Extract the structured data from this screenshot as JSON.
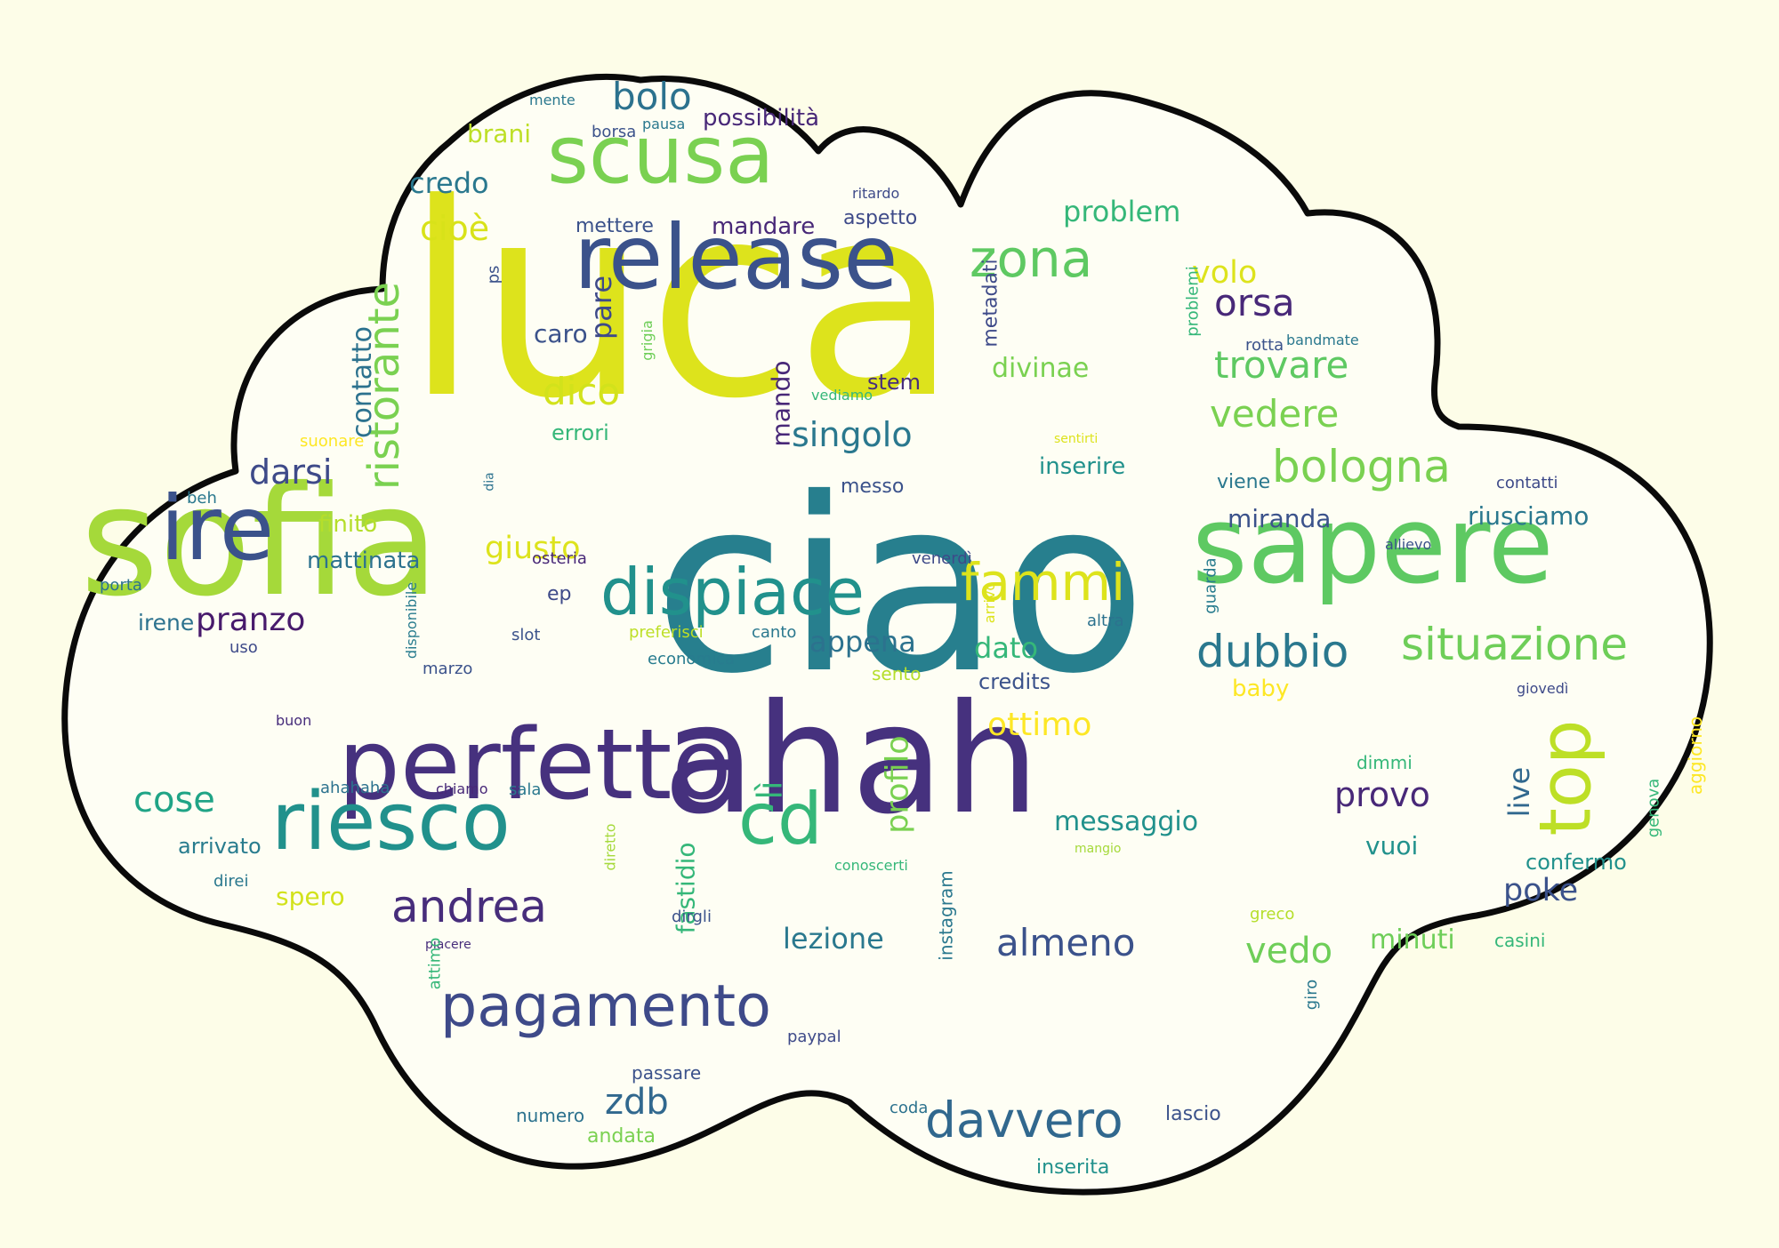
{
  "palette": {
    "background": "#fdfde8",
    "cloud_fill": "#fefef4",
    "cloud_outline": "#0a0a0a"
  },
  "words": [
    {
      "text": "luca",
      "color": "#dde31c"
    },
    {
      "text": "ciao",
      "color": "#277f8e"
    },
    {
      "text": "sofia",
      "color": "#a5d93a"
    },
    {
      "text": "ahah",
      "color": "#46317e"
    },
    {
      "text": "sapere",
      "color": "#5ec962"
    },
    {
      "text": "perfetto",
      "color": "#46317e"
    },
    {
      "text": "release",
      "color": "#3b528b"
    },
    {
      "text": "scusa",
      "color": "#7ad151"
    },
    {
      "text": "ire",
      "color": "#3b528b"
    },
    {
      "text": "riesco",
      "color": "#21918c"
    },
    {
      "text": "dispiace",
      "color": "#21918c"
    },
    {
      "text": "pagamento",
      "color": "#3e4a89"
    },
    {
      "text": "top",
      "color": "#bddf26"
    },
    {
      "text": "davvero",
      "color": "#31688e"
    },
    {
      "text": "situazione",
      "color": "#6ece58"
    },
    {
      "text": "bologna",
      "color": "#7ad151"
    },
    {
      "text": "fammi",
      "color": "#dde31c"
    },
    {
      "text": "dubbio",
      "color": "#2a788e"
    },
    {
      "text": "zona",
      "color": "#5ec962"
    },
    {
      "text": "cd",
      "color": "#35b779"
    },
    {
      "text": "ristorante",
      "color": "#7ad151"
    },
    {
      "text": "andrea",
      "color": "#472d7b"
    },
    {
      "text": "almeno",
      "color": "#3b528b"
    },
    {
      "text": "trovare",
      "color": "#5ec962"
    },
    {
      "text": "vedere",
      "color": "#7ad151"
    },
    {
      "text": "orsa",
      "color": "#482878"
    },
    {
      "text": "singolo",
      "color": "#2a788e"
    },
    {
      "text": "dico",
      "color": "#d2e21b"
    },
    {
      "text": "bolo",
      "color": "#2c728e"
    },
    {
      "text": "provo",
      "color": "#482878"
    },
    {
      "text": "pranzo",
      "color": "#481a6c"
    },
    {
      "text": "darsi",
      "color": "#3e4a89"
    },
    {
      "text": "giusto",
      "color": "#dde31c"
    },
    {
      "text": "cose",
      "color": "#20a486"
    },
    {
      "text": "ottimo",
      "color": "#fde725"
    },
    {
      "text": "profilo",
      "color": "#7ad151"
    },
    {
      "text": "appena",
      "color": "#2c728e"
    },
    {
      "text": "vedo",
      "color": "#6ece58"
    },
    {
      "text": "zdb",
      "color": "#31688e"
    },
    {
      "text": "credo",
      "color": "#2a788e"
    },
    {
      "text": "cioè",
      "color": "#d8e219"
    },
    {
      "text": "contatto",
      "color": "#2c728e"
    },
    {
      "text": "live",
      "color": "#31688e"
    },
    {
      "text": "poke",
      "color": "#3b528b"
    },
    {
      "text": "volo",
      "color": "#dde31c"
    },
    {
      "text": "lezione",
      "color": "#2a788e"
    },
    {
      "text": "problem",
      "color": "#35b779"
    },
    {
      "text": "messaggio",
      "color": "#21918c"
    },
    {
      "text": "divinae",
      "color": "#7ad151"
    },
    {
      "text": "dato",
      "color": "#35b779"
    },
    {
      "text": "miranda",
      "color": "#3b528b"
    },
    {
      "text": "riusciamo",
      "color": "#2a788e"
    },
    {
      "text": "minuti",
      "color": "#6ece58"
    },
    {
      "text": "mandare",
      "color": "#482878"
    },
    {
      "text": "mattinata",
      "color": "#2c728e"
    },
    {
      "text": "lì",
      "color": "#35b779"
    },
    {
      "text": "possibilità",
      "color": "#482878"
    },
    {
      "text": "brani",
      "color": "#bddf26"
    },
    {
      "text": "pare",
      "color": "#3e4a89"
    },
    {
      "text": "caro",
      "color": "#3b528b"
    },
    {
      "text": "mando",
      "color": "#482878"
    },
    {
      "text": "inserire",
      "color": "#21918c"
    },
    {
      "text": "vuoi",
      "color": "#21918c"
    },
    {
      "text": "finito",
      "color": "#b5de2b"
    },
    {
      "text": "spero",
      "color": "#d2e21b"
    },
    {
      "text": "irene",
      "color": "#2c728e"
    },
    {
      "text": "credits",
      "color": "#3b528b"
    },
    {
      "text": "fastidio",
      "color": "#35b779"
    },
    {
      "text": "baby",
      "color": "#fde725"
    },
    {
      "text": "confermo",
      "color": "#21918c"
    },
    {
      "text": "arrivato",
      "color": "#287c8e"
    },
    {
      "text": "errori",
      "color": "#35b779"
    },
    {
      "text": "stem",
      "color": "#472d7b"
    },
    {
      "text": "messo",
      "color": "#3b528b"
    },
    {
      "text": "viene",
      "color": "#2a788e"
    },
    {
      "text": "mettere",
      "color": "#3b528b"
    },
    {
      "text": "aspetto",
      "color": "#3e4a89"
    },
    {
      "text": "metadati",
      "color": "#3e4a89"
    },
    {
      "text": "instagram",
      "color": "#2a788e"
    },
    {
      "text": "genova",
      "color": "#35b779"
    },
    {
      "text": "aggiorno",
      "color": "#fde725"
    },
    {
      "text": "lascio",
      "color": "#3b528b"
    },
    {
      "text": "inserita",
      "color": "#21918c"
    },
    {
      "text": "andata",
      "color": "#7ad151"
    },
    {
      "text": "passare",
      "color": "#3b528b"
    },
    {
      "text": "numero",
      "color": "#2c728e"
    },
    {
      "text": "paypal",
      "color": "#3e4a89"
    },
    {
      "text": "coda",
      "color": "#2c728e"
    },
    {
      "text": "casini",
      "color": "#35b779"
    },
    {
      "text": "giro",
      "color": "#2a788e"
    },
    {
      "text": "greco",
      "color": "#b5de2b"
    },
    {
      "text": "dimmi",
      "color": "#35b779"
    },
    {
      "text": "sento",
      "color": "#b5de2b"
    },
    {
      "text": "economica",
      "color": "#287c8e"
    },
    {
      "text": "canto",
      "color": "#2a788e"
    },
    {
      "text": "preferisci",
      "color": "#bddf26"
    },
    {
      "text": "slot",
      "color": "#3b528b"
    },
    {
      "text": "ep",
      "color": "#3e4a89"
    },
    {
      "text": "osteria",
      "color": "#482878"
    },
    {
      "text": "venerdì",
      "color": "#3e4a89"
    },
    {
      "text": "guarda",
      "color": "#287c8e"
    },
    {
      "text": "altra",
      "color": "#2c728e"
    },
    {
      "text": "arrivo",
      "color": "#dde31c"
    },
    {
      "text": "disponibile",
      "color": "#287c8e"
    },
    {
      "text": "marzo",
      "color": "#3b528b"
    },
    {
      "text": "buon",
      "color": "#472d7b"
    },
    {
      "text": "uso",
      "color": "#3e4a89"
    },
    {
      "text": "chiamo",
      "color": "#482878"
    },
    {
      "text": "sala",
      "color": "#2a788e"
    },
    {
      "text": "ahahaha",
      "color": "#2c728e"
    },
    {
      "text": "diretto",
      "color": "#a5d93a"
    },
    {
      "text": "dirgli",
      "color": "#3b528b"
    },
    {
      "text": "piacere",
      "color": "#472d7b"
    },
    {
      "text": "attimo",
      "color": "#35b779"
    },
    {
      "text": "direi",
      "color": "#2a788e"
    },
    {
      "text": "porta",
      "color": "#2c728e"
    },
    {
      "text": "beh",
      "color": "#2a788e"
    },
    {
      "text": "dia",
      "color": "#2c728e"
    },
    {
      "text": "suonare",
      "color": "#fde725"
    },
    {
      "text": "vediamo",
      "color": "#35b779"
    },
    {
      "text": "grigia",
      "color": "#6ece58"
    },
    {
      "text": "sentirti",
      "color": "#dde31c"
    },
    {
      "text": "rotta",
      "color": "#3b528b"
    },
    {
      "text": "bandmate",
      "color": "#2a788e"
    },
    {
      "text": "problemi",
      "color": "#35b779"
    },
    {
      "text": "contatti",
      "color": "#3e4a89"
    },
    {
      "text": "allievo",
      "color": "#3b528b"
    },
    {
      "text": "giovedì",
      "color": "#3e4a89"
    },
    {
      "text": "ritardo",
      "color": "#3e4a89"
    },
    {
      "text": "borsa",
      "color": "#3b528b"
    },
    {
      "text": "pausa",
      "color": "#2a788e"
    },
    {
      "text": "mente",
      "color": "#2a788e"
    },
    {
      "text": "ps",
      "color": "#3b528b"
    },
    {
      "text": "mangio",
      "color": "#a5d93a"
    },
    {
      "text": "conoscerti",
      "color": "#35b779"
    }
  ]
}
